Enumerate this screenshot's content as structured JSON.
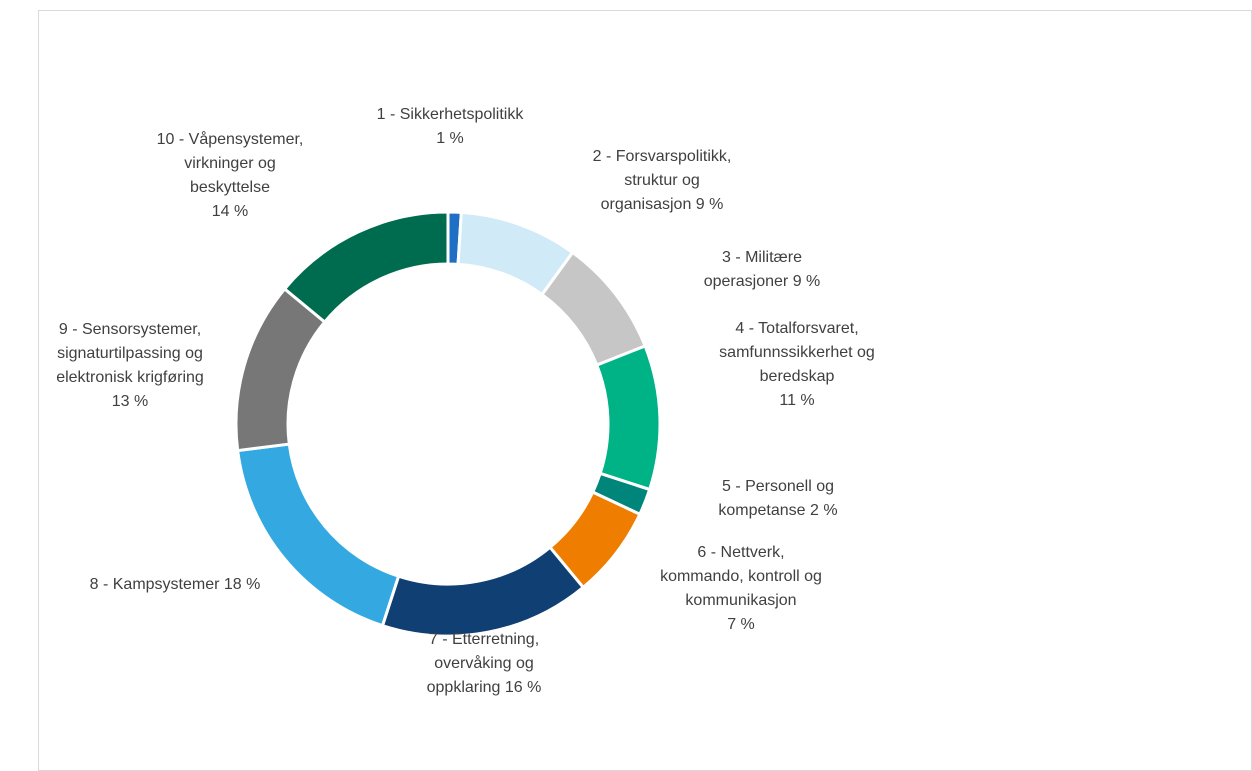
{
  "chart_data": {
    "type": "donut",
    "categories": [
      "1 - Sikkerhetspolitikk",
      "2 - Forsvarspolitikk, struktur og organisasjon",
      "3 - Militære operasjoner",
      "4 - Totalforsvaret, samfunnssikkerhet og beredskap",
      "5 - Personell og kompetanse",
      "6 - Nettverk, kommando, kontroll og kommunikasjon",
      "7 - Etterretning, overvåking og oppklaring",
      "8 - Kampsystemer",
      "9 - Sensorsystemer, signaturtilpassing og elektronisk krigføring",
      "10 - Våpensystemer, virkninger og beskyttelse"
    ],
    "values": [
      1,
      9,
      9,
      11,
      2,
      7,
      16,
      18,
      13,
      14
    ],
    "value_labels": [
      "1 %",
      "9 %",
      "9 %",
      "11 %",
      "2 %",
      "7 %",
      "16 %",
      "18 %",
      "13 %",
      "14 %"
    ],
    "colors": [
      "#1f6fc5",
      "#d0ebf7",
      "#c6c6c6",
      "#00b386",
      "#00857a",
      "#ef7d00",
      "#0f3f73",
      "#34a9e1",
      "#777777",
      "#006c4f"
    ]
  }
}
